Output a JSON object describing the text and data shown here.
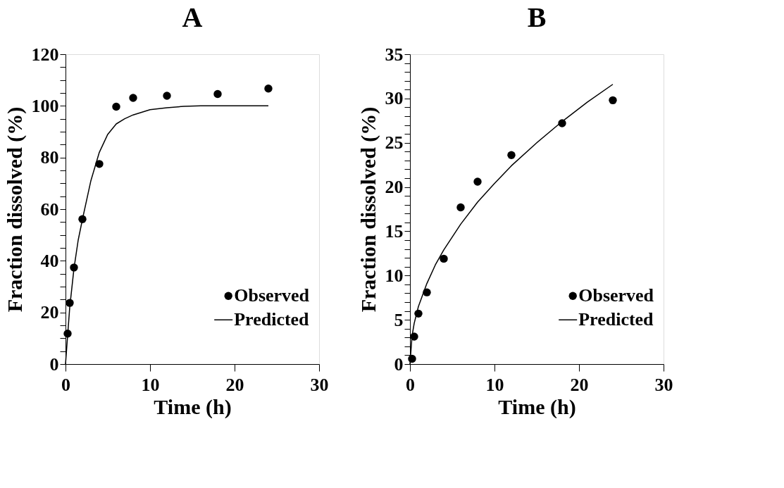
{
  "chart_data": [
    {
      "type": "scatter",
      "title": "A",
      "xlabel": "Time (h)",
      "ylabel": "Fraction dissolved (%)",
      "xlim": [
        0,
        30
      ],
      "xticks": [
        0,
        10,
        20,
        30
      ],
      "ylim": [
        0,
        120
      ],
      "yticks": [
        0,
        {
          "value": 5,
          "label": null
        },
        {
          "value": 10,
          "label": null
        },
        {
          "value": 15,
          "label": null
        },
        20,
        {
          "value": 25,
          "label": null
        },
        {
          "value": 30,
          "label": null
        },
        {
          "value": 35,
          "label": null
        },
        40,
        {
          "value": 45,
          "label": null
        },
        {
          "value": 50,
          "label": null
        },
        {
          "value": 55,
          "label": null
        },
        60,
        {
          "value": 65,
          "label": null
        },
        {
          "value": 70,
          "label": null
        },
        {
          "value": 75,
          "label": null
        },
        80,
        {
          "value": 85,
          "label": null
        },
        {
          "value": 90,
          "label": null
        },
        {
          "value": 95,
          "label": null
        },
        100,
        {
          "value": 105,
          "label": null
        },
        {
          "value": 110,
          "label": null
        },
        {
          "value": 115,
          "label": null
        },
        120
      ],
      "grid": false,
      "legend": "bottom right",
      "series": [
        {
          "name": "Observed",
          "type": "scatter",
          "marker": "circle",
          "color": "#000000",
          "x": [
            0.25,
            0.5,
            1,
            2,
            4,
            6,
            8,
            12,
            18,
            24
          ],
          "values": [
            11.8,
            23.7,
            37.4,
            56.1,
            77.5,
            99.7,
            103.1,
            103.9,
            104.6,
            106.7
          ]
        },
        {
          "name": "Predicted",
          "type": "line",
          "marker": "none",
          "line_style": "solid",
          "color": "#000000",
          "x": [
            0,
            0.25,
            0.5,
            1,
            1.5,
            2,
            3,
            4,
            5,
            6,
            7,
            8,
            10,
            12,
            14,
            16,
            20,
            24
          ],
          "values": [
            0,
            11,
            22,
            37,
            48,
            56,
            71,
            82,
            89,
            93,
            95,
            96.5,
            98.5,
            99.3,
            99.8,
            100,
            100,
            100
          ]
        }
      ]
    },
    {
      "type": "scatter",
      "title": "B",
      "xlabel": "Time (h)",
      "ylabel": "Fraction dissolved (%)",
      "xlim": [
        0,
        30
      ],
      "xticks": [
        0,
        10,
        20,
        30
      ],
      "ylim": [
        0,
        35
      ],
      "yticks": [
        0,
        {
          "value": 1,
          "label": null
        },
        {
          "value": 2,
          "label": null
        },
        {
          "value": 3,
          "label": null
        },
        {
          "value": 4,
          "label": null
        },
        5,
        {
          "value": 6,
          "label": null
        },
        {
          "value": 7,
          "label": null
        },
        {
          "value": 8,
          "label": null
        },
        {
          "value": 9,
          "label": null
        },
        10,
        {
          "value": 11,
          "label": null
        },
        {
          "value": 12,
          "label": null
        },
        {
          "value": 13,
          "label": null
        },
        {
          "value": 14,
          "label": null
        },
        15,
        {
          "value": 16,
          "label": null
        },
        {
          "value": 17,
          "label": null
        },
        {
          "value": 18,
          "label": null
        },
        {
          "value": 19,
          "label": null
        },
        20,
        {
          "value": 21,
          "label": null
        },
        {
          "value": 22,
          "label": null
        },
        {
          "value": 23,
          "label": null
        },
        {
          "value": 24,
          "label": null
        },
        25,
        {
          "value": 26,
          "label": null
        },
        {
          "value": 27,
          "label": null
        },
        {
          "value": 28,
          "label": null
        },
        {
          "value": 29,
          "label": null
        },
        30,
        {
          "value": 31,
          "label": null
        },
        {
          "value": 32,
          "label": null
        },
        {
          "value": 33,
          "label": null
        },
        {
          "value": 34,
          "label": null
        },
        35
      ],
      "grid": false,
      "legend": "bottom right",
      "series": [
        {
          "name": "Observed",
          "type": "scatter",
          "marker": "circle",
          "color": "#000000",
          "x": [
            0.25,
            0.5,
            1,
            2,
            4,
            6,
            8,
            12,
            18,
            24
          ],
          "values": [
            0.6,
            3.1,
            5.7,
            8.1,
            11.9,
            17.7,
            20.6,
            23.6,
            27.2,
            29.8
          ]
        },
        {
          "name": "Predicted",
          "type": "line",
          "marker": "none",
          "line_style": "solid",
          "color": "#000000",
          "x": [
            0,
            0.25,
            0.5,
            1,
            2,
            3,
            4,
            6,
            8,
            10,
            12,
            15,
            18,
            21,
            24
          ],
          "values": [
            0,
            3.2,
            4.6,
            6.5,
            9.1,
            11.2,
            12.9,
            15.8,
            18.3,
            20.4,
            22.4,
            25.0,
            27.4,
            29.6,
            31.6
          ]
        }
      ]
    }
  ]
}
